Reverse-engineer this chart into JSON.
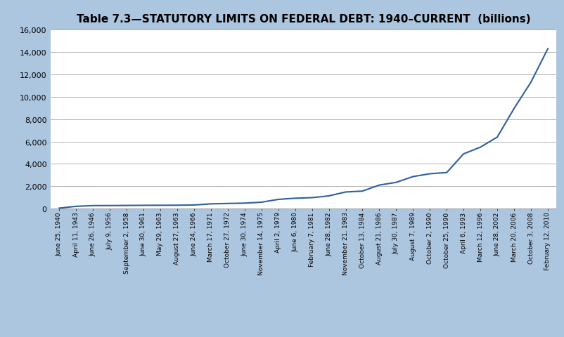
{
  "title": "Table 7.3—STATUTORY LIMITS ON FEDERAL DEBT: 1940–CURRENT  (billions)",
  "background_color": "#adc6e0",
  "plot_bg_color": "#ffffff",
  "line_color": "#2e5f9e",
  "ylim": [
    0,
    16000
  ],
  "yticks": [
    0,
    2000,
    4000,
    6000,
    8000,
    10000,
    12000,
    14000,
    16000
  ],
  "labels": [
    "June 25, 1940",
    "April 11, 1943",
    "June 26, 1946",
    "July 9, 1956",
    "September 2, 1958",
    "June 30, 1961",
    "May 29, 1963",
    "August 27, 1963",
    "June 24, 1966",
    "March 17, 1971",
    "October 27, 1972",
    "June 30, 1974",
    "November 14, 1975",
    "April 2, 1979",
    "June 6, 1980",
    "February 7, 1981",
    "June 28, 1982",
    "November 21, 1983",
    "October 13, 1984",
    "August 21, 1986",
    "July 30, 1987",
    "August 7, 1989",
    "October 2, 1990",
    "October 25, 1990",
    "April 6, 1993",
    "March 12, 1996",
    "June 28, 2002",
    "March 20, 2006",
    "October 3, 2008",
    "February 12, 2010"
  ],
  "values": [
    49,
    210,
    275,
    278,
    288,
    298,
    305,
    309,
    330,
    430,
    465,
    495,
    577,
    830,
    935,
    985,
    1143,
    1490,
    1573,
    2111,
    2352,
    2870,
    3123,
    3230,
    4900,
    5500,
    6400,
    8965,
    11315,
    14294
  ],
  "title_fontsize": 11,
  "tick_fontsize": 6.5,
  "ytick_fontsize": 8
}
